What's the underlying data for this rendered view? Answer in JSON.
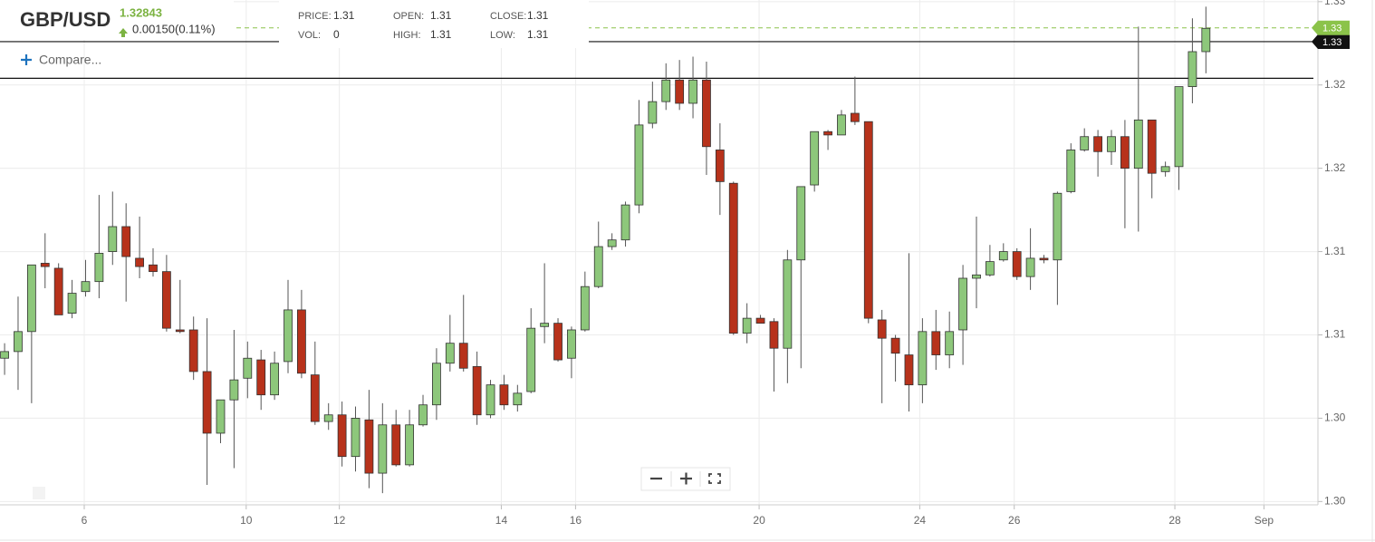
{
  "header": {
    "symbol": "GBP/USD",
    "last_price": 1.32843,
    "change": "0.00150(0.11%)",
    "compare": "Compare...",
    "stats": [
      {
        "label": "PRICE:",
        "value": 1.31
      },
      {
        "label": "VOL:",
        "value": 0
      },
      {
        "label": "OPEN:",
        "value": 1.31
      },
      {
        "label": "HIGH:",
        "value": 1.31
      },
      {
        "label": "CLOSE:",
        "value": 1.31
      },
      {
        "label": "LOW:",
        "value": 1.31
      }
    ]
  },
  "chart_data": {
    "type": "candlestick",
    "up_color": "#8dc77b",
    "down_color": "#b7321b",
    "grid": true,
    "x": [
      0,
      1,
      2,
      3,
      4,
      5,
      6,
      7,
      8,
      9,
      10,
      11,
      12,
      13,
      14,
      15,
      16,
      17,
      18,
      19,
      20,
      21,
      22,
      23,
      24,
      25,
      26,
      27,
      28,
      29,
      30,
      31,
      32,
      33,
      34,
      35,
      36,
      37,
      38,
      39,
      40,
      41,
      42,
      43,
      44,
      45,
      46,
      47,
      48,
      49,
      50,
      51,
      52,
      53,
      54,
      55,
      56,
      57,
      58,
      59,
      60,
      61,
      62,
      63,
      64,
      65,
      66,
      67,
      68,
      69,
      70,
      71,
      72,
      73,
      74,
      75,
      76,
      77,
      78,
      79,
      80,
      81,
      82,
      83,
      84,
      85,
      86,
      87,
      88,
      89
    ],
    "open": [
      1.3086,
      1.309,
      1.3102,
      1.3143,
      1.314,
      1.3113,
      1.3126,
      1.3132,
      1.315,
      1.3165,
      1.3146,
      1.3142,
      1.3138,
      1.3103,
      1.3103,
      1.3078,
      1.3041,
      1.3061,
      1.3074,
      1.3085,
      1.3064,
      1.3084,
      1.3115,
      1.3076,
      1.3048,
      1.3052,
      1.3027,
      1.3049,
      1.3017,
      1.3046,
      1.3022,
      1.3046,
      1.3058,
      1.3083,
      1.3095,
      1.3081,
      1.3052,
      1.307,
      1.3058,
      1.3066,
      1.3105,
      1.3107,
      1.3086,
      1.3103,
      1.3129,
      1.3153,
      1.3157,
      1.3178,
      1.3227,
      1.324,
      1.3253,
      1.3239,
      1.3253,
      1.3211,
      1.3191,
      1.3101,
      1.311,
      1.3108,
      1.3092,
      1.3145,
      1.319,
      1.3222,
      1.322,
      1.3233,
      1.3228,
      1.3109,
      1.3098,
      1.3088,
      1.307,
      1.3102,
      1.3088,
      1.3103,
      1.3134,
      1.3136,
      1.3145,
      1.315,
      1.3135,
      1.3146,
      1.3145,
      1.3186,
      1.3211,
      1.3219,
      1.321,
      1.3219,
      1.32,
      1.3229,
      1.3198,
      1.3201,
      1.3249,
      1.327
    ],
    "high": [
      1.3095,
      1.3123,
      1.3142,
      1.3161,
      1.3143,
      1.3133,
      1.3145,
      1.3184,
      1.3186,
      1.3179,
      1.3171,
      1.3152,
      1.3148,
      1.3133,
      1.3111,
      1.311,
      1.3061,
      1.3103,
      1.3096,
      1.3091,
      1.309,
      1.3133,
      1.3127,
      1.3096,
      1.3059,
      1.306,
      1.3057,
      1.3067,
      1.3059,
      1.3055,
      1.3055,
      1.3064,
      1.3092,
      1.3112,
      1.3124,
      1.309,
      1.3073,
      1.3076,
      1.307,
      1.3116,
      1.3143,
      1.311,
      1.3105,
      1.3138,
      1.3168,
      1.3161,
      1.318,
      1.3241,
      1.3252,
      1.3263,
      1.3265,
      1.3267,
      1.3264,
      1.3227,
      1.3192,
      1.3119,
      1.3112,
      1.311,
      1.3151,
      1.3189,
      1.3222,
      1.3223,
      1.3235,
      1.3255,
      1.3228,
      1.3115,
      1.31,
      1.3149,
      1.311,
      1.3115,
      1.3114,
      1.3142,
      1.3171,
      1.3154,
      1.3155,
      1.3152,
      1.3164,
      1.3148,
      1.3186,
      1.3215,
      1.3224,
      1.3223,
      1.3223,
      1.3229,
      1.3285,
      1.3229,
      1.3204,
      1.3249,
      1.329,
      1.3297
    ],
    "low": [
      1.3076,
      1.3067,
      1.3059,
      1.3128,
      1.3112,
      1.311,
      1.3123,
      1.3122,
      1.3142,
      1.312,
      1.3134,
      1.3135,
      1.3102,
      1.3101,
      1.3073,
      1.301,
      1.3035,
      1.302,
      1.3062,
      1.3055,
      1.3061,
      1.3077,
      1.3074,
      1.3046,
      1.3043,
      1.3021,
      1.3018,
      1.3008,
      1.3005,
      1.3021,
      1.3021,
      1.3045,
      1.3049,
      1.3078,
      1.3078,
      1.3046,
      1.305,
      1.3055,
      1.3054,
      1.3065,
      1.3095,
      1.3084,
      1.3074,
      1.3102,
      1.3128,
      1.3151,
      1.3153,
      1.3173,
      1.3224,
      1.3235,
      1.3235,
      1.323,
      1.3196,
      1.3172,
      1.31,
      1.3095,
      1.3107,
      1.3066,
      1.3071,
      1.308,
      1.3186,
      1.3211,
      1.322,
      1.3226,
      1.3107,
      1.3059,
      1.3072,
      1.3054,
      1.3059,
      1.3079,
      1.308,
      1.3082,
      1.3116,
      1.3135,
      1.3144,
      1.3133,
      1.3127,
      1.3143,
      1.3118,
      1.3185,
      1.321,
      1.3195,
      1.3202,
      1.3164,
      1.3162,
      1.3182,
      1.3195,
      1.3187,
      1.3239,
      1.3257
    ],
    "close": [
      1.309,
      1.3102,
      1.3142,
      1.3141,
      1.3112,
      1.3125,
      1.3132,
      1.3149,
      1.3165,
      1.3147,
      1.3141,
      1.3138,
      1.3104,
      1.3102,
      1.3078,
      1.3041,
      1.3061,
      1.3073,
      1.3086,
      1.3064,
      1.3083,
      1.3115,
      1.3077,
      1.3048,
      1.3052,
      1.3027,
      1.305,
      1.3017,
      1.3046,
      1.3022,
      1.3046,
      1.3058,
      1.3083,
      1.3095,
      1.308,
      1.3052,
      1.307,
      1.3058,
      1.3065,
      1.3104,
      1.3107,
      1.3085,
      1.3103,
      1.3129,
      1.3153,
      1.3157,
      1.3178,
      1.3226,
      1.324,
      1.3253,
      1.3239,
      1.3253,
      1.3213,
      1.3192,
      1.3101,
      1.311,
      1.3107,
      1.3092,
      1.3145,
      1.3189,
      1.3222,
      1.322,
      1.3232,
      1.3228,
      1.311,
      1.3098,
      1.3089,
      1.307,
      1.3102,
      1.3088,
      1.3102,
      1.3134,
      1.3136,
      1.3144,
      1.315,
      1.3135,
      1.3146,
      1.3145,
      1.3185,
      1.3211,
      1.3219,
      1.321,
      1.3219,
      1.32,
      1.3229,
      1.3197,
      1.3201,
      1.3249,
      1.327,
      1.3284
    ],
    "xlim": [
      -0.34,
      97.3
    ],
    "xticks": [
      {
        "value": 5.9,
        "label": "6"
      },
      {
        "value": 17.9,
        "label": "10"
      },
      {
        "value": 24.8,
        "label": "12"
      },
      {
        "value": 36.8,
        "label": "14"
      },
      {
        "value": 42.3,
        "label": "16"
      },
      {
        "value": 55.9,
        "label": "20"
      },
      {
        "value": 67.8,
        "label": "24"
      },
      {
        "value": 74.8,
        "label": "26"
      },
      {
        "value": 86.7,
        "label": "28"
      },
      {
        "value": 93.3,
        "label": "Sep"
      }
    ],
    "ylim": [
      1.2998,
      1.3301
    ],
    "yticks": [
      {
        "value": 1.3,
        "label": "1.30"
      },
      {
        "value": 1.305,
        "label": "1.30"
      },
      {
        "value": 1.31,
        "label": "1.31"
      },
      {
        "value": 1.315,
        "label": "1.31"
      },
      {
        "value": 1.32,
        "label": "1.32"
      },
      {
        "value": 1.325,
        "label": "1.32"
      },
      {
        "value": 1.33,
        "label": "1.33"
      }
    ],
    "current_price": {
      "value": 1.32843,
      "label": "1.33"
    },
    "horizontal_lines": [
      {
        "value": 1.3276,
        "label": "1.33"
      },
      {
        "value": 1.3254
      }
    ]
  }
}
